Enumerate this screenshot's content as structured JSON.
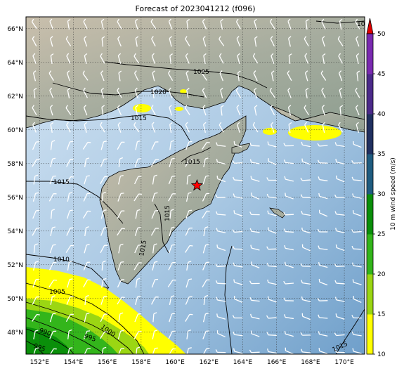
{
  "title": "Forecast of 2023041212 (f096)",
  "lat_labels": [
    "66°N",
    "64°N",
    "62°N",
    "60°N",
    "58°N",
    "56°N",
    "54°N",
    "52°N",
    "50°N",
    "48°N"
  ],
  "lon_labels": [
    "152°E",
    "154°E",
    "156°E",
    "158°E",
    "160°E",
    "162°E",
    "164°E",
    "166°E",
    "168°E",
    "170°E"
  ],
  "colorbar": {
    "label": "10 m wind speed (m/s)",
    "ticks": [
      "10",
      "15",
      "20",
      "25",
      "30",
      "35",
      "40",
      "45",
      "50"
    ],
    "colors": [
      "#ffff00",
      "#9bd613",
      "#33b51b",
      "#0a8f0a",
      "#1f5c80",
      "#203060",
      "#4b2a8a",
      "#7a2ab0",
      "#9b40c0"
    ],
    "extend_color": "#e00000"
  },
  "contour_labels": [
    "1025",
    "1020",
    "1015",
    "1015",
    "1015",
    "1015",
    "1015",
    "1010",
    "1005",
    "1000",
    "995",
    "990",
    "995",
    "1015",
    "10"
  ],
  "marker": {
    "type": "star",
    "color": "#ff0000",
    "lon": 161.3,
    "lat": 56.7
  },
  "map_extent": {
    "lon": [
      151.2,
      171.2
    ],
    "lat": [
      46.7,
      66.7
    ]
  },
  "colors": {
    "ocean": "#8fb7d8",
    "land": "#b6b09e",
    "contour": "#000000",
    "barb": "#ffffff"
  }
}
